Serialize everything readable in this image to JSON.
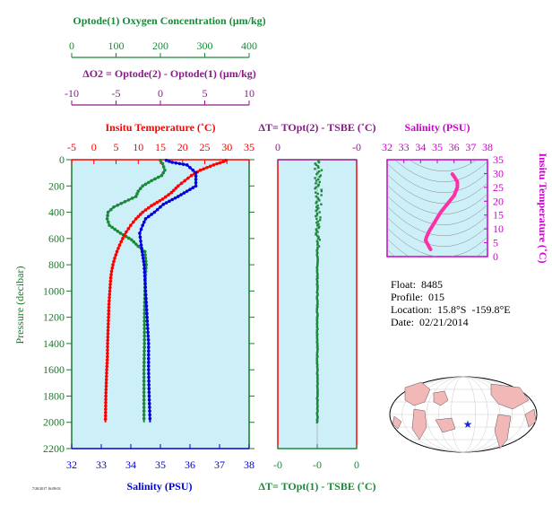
{
  "colors": {
    "panel_fill": "#cdeff7",
    "oxygen": "#1a8a3a",
    "delta_o2": "#8a1a8a",
    "temperature": "#ff0000",
    "salinity": "#0000dd",
    "salinity_profile": "#ff2fa8",
    "inset_axes": "#cc00cc",
    "pressure_axis": "#1a7a2a",
    "map_land": "#f2b8b8",
    "map_ocean": "#ffffff"
  },
  "info": {
    "float": "Float:  8485",
    "profile": "Profile:  015",
    "location": "Location:  15.8°S  -159.8°E",
    "date": "Date:  02/21/2014"
  },
  "footer_code": "7/20/2017 16:08:03",
  "chart_data": [
    {
      "type": "line",
      "panel": "main",
      "ylabel": "Pressure (decibar)",
      "yticks": [
        0,
        200,
        400,
        600,
        800,
        1000,
        1200,
        1400,
        1600,
        1800,
        2000,
        2200
      ],
      "ylim": [
        2200,
        0
      ],
      "axes": [
        {
          "label": "Optode(1) Oxygen Concentration (µm/kg)",
          "ticks": [
            0,
            100,
            200,
            300,
            400
          ],
          "range": [
            0,
            400
          ]
        },
        {
          "label": "ΔO2 = Optode(2) - Optode(1)   (µm/kg)",
          "ticks": [
            -10,
            -5,
            0,
            5,
            10
          ],
          "range": [
            -10,
            10
          ]
        },
        {
          "label": "Insitu Temperature (˚C)",
          "ticks": [
            -5,
            0,
            5,
            10,
            15,
            20,
            25,
            30,
            35
          ],
          "range": [
            -5,
            35
          ]
        },
        {
          "label": "Salinity (PSU)",
          "ticks": [
            32,
            33,
            34,
            35,
            36,
            37,
            38
          ],
          "range": [
            32,
            38
          ]
        }
      ],
      "series": [
        {
          "key": "temperature",
          "points": [
            [
              29.8,
              5
            ],
            [
              29.2,
              15
            ],
            [
              27,
              40
            ],
            [
              25.5,
              60
            ],
            [
              24,
              80
            ],
            [
              22,
              120
            ],
            [
              20.5,
              160
            ],
            [
              19,
              200
            ],
            [
              17.5,
              250
            ],
            [
              15.5,
              300
            ],
            [
              13,
              350
            ],
            [
              11,
              400
            ],
            [
              9.5,
              450
            ],
            [
              8.3,
              500
            ],
            [
              7.3,
              550
            ],
            [
              6.5,
              600
            ],
            [
              5.8,
              650
            ],
            [
              5.2,
              700
            ],
            [
              4.7,
              750
            ],
            [
              4.3,
              800
            ],
            [
              4,
              850
            ],
            [
              3.8,
              900
            ],
            [
              3.6,
              1000
            ],
            [
              3.4,
              1100
            ],
            [
              3.3,
              1200
            ],
            [
              3.2,
              1300
            ],
            [
              3.1,
              1400
            ],
            [
              3.05,
              1500
            ],
            [
              2.9,
              1600
            ],
            [
              2.8,
              1700
            ],
            [
              2.7,
              1800
            ],
            [
              2.65,
              1900
            ],
            [
              2.6,
              2000
            ]
          ]
        },
        {
          "key": "oxygen",
          "points": [
            [
              200,
              5
            ],
            [
              205,
              30
            ],
            [
              210,
              80
            ],
            [
              203,
              120
            ],
            [
              180,
              160
            ],
            [
              160,
              200
            ],
            [
              150,
              240
            ],
            [
              145,
              280
            ],
            [
              120,
              320
            ],
            [
              95,
              360
            ],
            [
              82,
              400
            ],
            [
              80,
              450
            ],
            [
              85,
              500
            ],
            [
              110,
              560
            ],
            [
              135,
              610
            ],
            [
              150,
              660
            ],
            [
              165,
              700
            ],
            [
              168,
              800
            ],
            [
              166,
              900
            ],
            [
              165,
              1000
            ],
            [
              164,
              1200
            ],
            [
              164,
              1400
            ],
            [
              163,
              1600
            ],
            [
              163,
              1800
            ],
            [
              163,
              2000
            ]
          ]
        },
        {
          "key": "salinity",
          "points": [
            [
              35.2,
              5
            ],
            [
              35.4,
              20
            ],
            [
              35.9,
              40
            ],
            [
              36.2,
              100
            ],
            [
              36.2,
              200
            ],
            [
              35.6,
              280
            ],
            [
              35.1,
              340
            ],
            [
              34.8,
              400
            ],
            [
              34.5,
              450
            ],
            [
              34.4,
              500
            ],
            [
              34.3,
              560
            ],
            [
              34.35,
              650
            ],
            [
              34.45,
              800
            ],
            [
              34.5,
              1000
            ],
            [
              34.55,
              1200
            ],
            [
              34.6,
              1400
            ],
            [
              34.6,
              1600
            ],
            [
              34.62,
              1800
            ],
            [
              34.65,
              2000
            ]
          ]
        }
      ]
    },
    {
      "type": "scatter",
      "panel": "delta_t",
      "top_label": "ΔT= TOpt(2) - TSBE (˚C)",
      "bottom_label": "ΔT= TOpt(1) - TSBE (˚C)",
      "top_ticks": [
        "0",
        "-0"
      ],
      "bottom_ticks": [
        "-0",
        "-0",
        "0"
      ],
      "series": [
        {
          "key": "oxygen"
        }
      ]
    },
    {
      "type": "line",
      "panel": "ts",
      "xlabel": "Salinity (PSU)",
      "ylabel": "Insitu Temperature (˚C)",
      "xticks": [
        32,
        33,
        34,
        35,
        36,
        37,
        38
      ],
      "yticks": [
        0,
        5,
        10,
        15,
        20,
        25,
        30,
        35
      ],
      "xlim": [
        32,
        38
      ],
      "ylim": [
        0,
        35
      ],
      "series": [
        {
          "key": "salinity_profile",
          "points": [
            [
              35.9,
              29.8
            ],
            [
              36.0,
              29
            ],
            [
              36.2,
              27
            ],
            [
              36.2,
              25
            ],
            [
              36.0,
              22
            ],
            [
              35.6,
              19
            ],
            [
              35.2,
              16
            ],
            [
              34.9,
              13
            ],
            [
              34.7,
              11
            ],
            [
              34.5,
              9
            ],
            [
              34.35,
              7
            ],
            [
              34.3,
              5.8
            ],
            [
              34.4,
              4.8
            ],
            [
              34.5,
              3.6
            ],
            [
              34.6,
              2.6
            ]
          ]
        }
      ]
    }
  ]
}
